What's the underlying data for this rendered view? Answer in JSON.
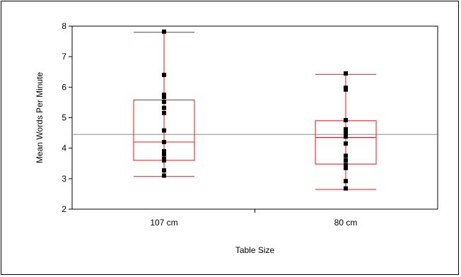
{
  "chart_data": {
    "type": "box",
    "xlabel": "Table Size",
    "ylabel": "Mean Words Per Minute",
    "ylim": [
      2,
      8
    ],
    "yticks": [
      "2",
      "3",
      "4",
      "5",
      "6",
      "7",
      "8"
    ],
    "categories": [
      "107 cm",
      "80 cm"
    ],
    "reference_line": 4.45,
    "grid": false,
    "colors": {
      "box": "#e8101a",
      "points": "#000000",
      "reference": "#8a8a8a",
      "axis": "#000000"
    },
    "boxes": [
      {
        "category": "107 cm",
        "whisker_low": 3.07,
        "q1": 3.6,
        "median": 4.2,
        "q3": 5.58,
        "whisker_high": 7.8,
        "points": [
          7.82,
          6.4,
          5.75,
          5.68,
          5.52,
          5.32,
          5.15,
          4.58,
          4.2,
          3.9,
          3.8,
          3.65,
          3.6,
          3.27,
          3.1
        ]
      },
      {
        "category": "80 cm",
        "whisker_low": 2.65,
        "q1": 3.48,
        "median": 4.35,
        "q3": 4.9,
        "whisker_high": 6.42,
        "points": [
          6.45,
          5.98,
          5.92,
          4.92,
          4.62,
          4.55,
          4.45,
          4.38,
          4.15,
          3.75,
          3.6,
          3.45,
          3.35,
          2.92,
          2.68
        ]
      }
    ]
  }
}
